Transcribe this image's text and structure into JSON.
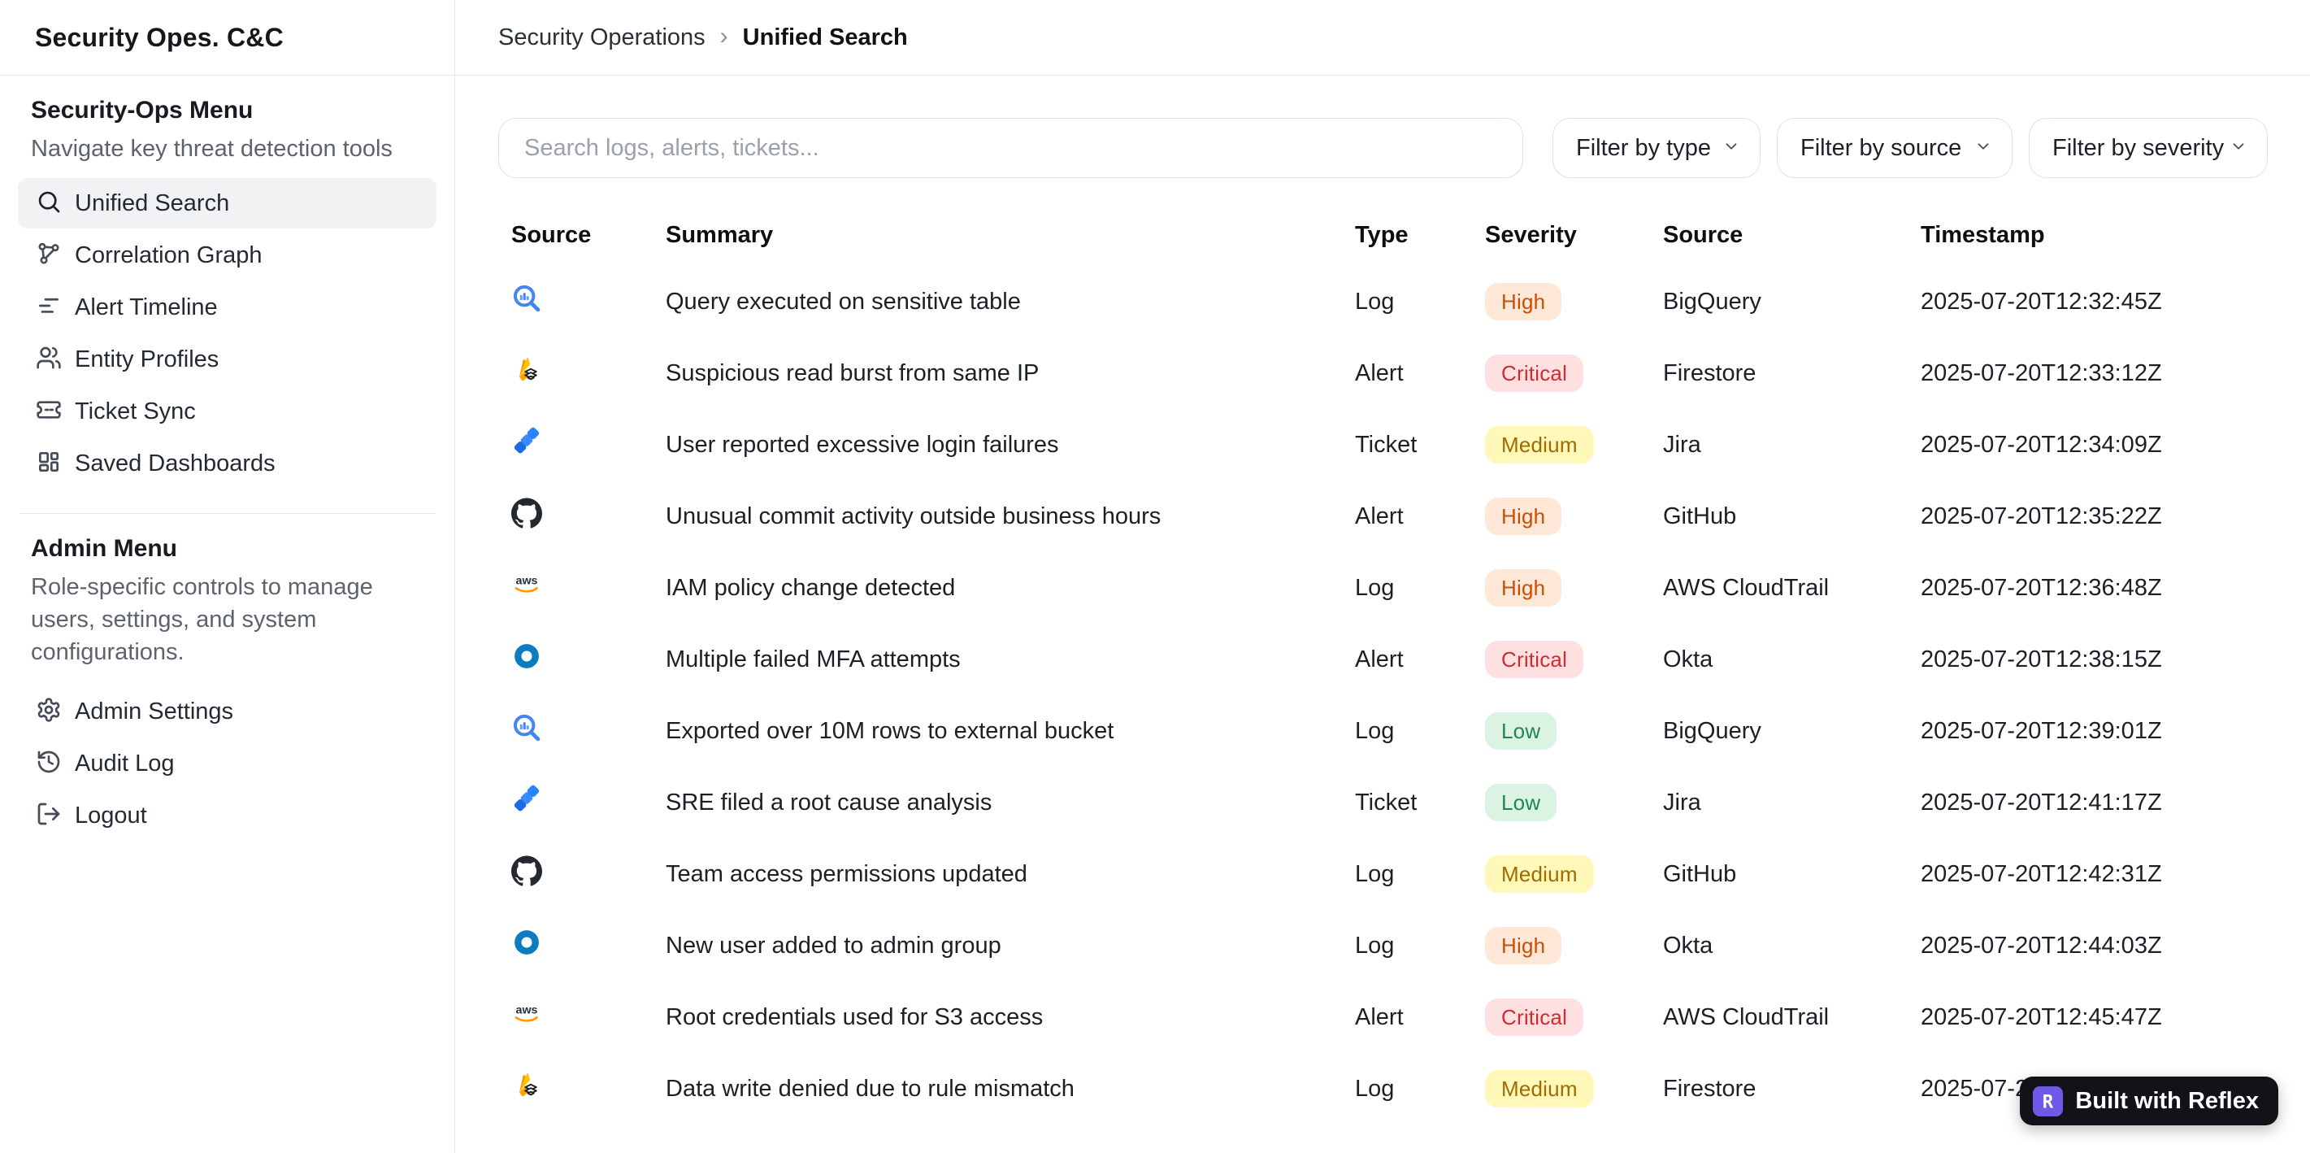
{
  "app": {
    "title": "Security Opes. C&C"
  },
  "breadcrumb": {
    "parent": "Security Operations",
    "separator": "›",
    "current": "Unified Search"
  },
  "sidebar": {
    "sections": [
      {
        "heading": "Security-Ops Menu",
        "description": "Navigate key threat detection tools",
        "items": [
          {
            "label": "Unified Search",
            "icon": "search-icon",
            "active": true
          },
          {
            "label": "Correlation Graph",
            "icon": "correlation-graph-icon",
            "active": false
          },
          {
            "label": "Alert Timeline",
            "icon": "timeline-icon",
            "active": false
          },
          {
            "label": "Entity Profiles",
            "icon": "users-icon",
            "active": false
          },
          {
            "label": "Ticket Sync",
            "icon": "ticket-icon",
            "active": false
          },
          {
            "label": "Saved Dashboards",
            "icon": "dashboard-icon",
            "active": false
          }
        ]
      },
      {
        "heading": "Admin Menu",
        "description": "Role-specific controls to manage users, settings, and system configurations.",
        "items": [
          {
            "label": "Admin Settings",
            "icon": "gear-icon",
            "active": false
          },
          {
            "label": "Audit Log",
            "icon": "history-icon",
            "active": false
          },
          {
            "label": "Logout",
            "icon": "logout-icon",
            "active": false
          }
        ]
      }
    ]
  },
  "toolbar": {
    "search_placeholder": "Search logs, alerts, tickets...",
    "filters": [
      {
        "label": "Filter by type"
      },
      {
        "label": "Filter by source"
      },
      {
        "label": "Filter by severity"
      }
    ]
  },
  "table": {
    "columns": [
      "Source",
      "Summary",
      "Type",
      "Severity",
      "Source",
      "Timestamp"
    ],
    "severity_colors": {
      "High": {
        "bg": "#ffe8d7",
        "text": "#cc4e00"
      },
      "Critical": {
        "bg": "#ffe0e1",
        "text": "#ce2c31"
      },
      "Medium": {
        "bg": "#fff8b8",
        "text": "#9e6c00"
      },
      "Low": {
        "bg": "#daf3e3",
        "text": "#218358"
      }
    },
    "rows": [
      {
        "icon": "bigquery-icon",
        "summary": "Query executed on sensitive table",
        "type": "Log",
        "severity": "High",
        "source": "BigQuery",
        "timestamp": "2025-07-20T12:32:45Z"
      },
      {
        "icon": "firestore-icon",
        "summary": "Suspicious read burst from same IP",
        "type": "Alert",
        "severity": "Critical",
        "source": "Firestore",
        "timestamp": "2025-07-20T12:33:12Z"
      },
      {
        "icon": "jira-icon",
        "summary": "User reported excessive login failures",
        "type": "Ticket",
        "severity": "Medium",
        "source": "Jira",
        "timestamp": "2025-07-20T12:34:09Z"
      },
      {
        "icon": "github-icon",
        "summary": "Unusual commit activity outside business hours",
        "type": "Alert",
        "severity": "High",
        "source": "GitHub",
        "timestamp": "2025-07-20T12:35:22Z"
      },
      {
        "icon": "aws-icon",
        "summary": "IAM policy change detected",
        "type": "Log",
        "severity": "High",
        "source": "AWS CloudTrail",
        "timestamp": "2025-07-20T12:36:48Z"
      },
      {
        "icon": "okta-icon",
        "summary": "Multiple failed MFA attempts",
        "type": "Alert",
        "severity": "Critical",
        "source": "Okta",
        "timestamp": "2025-07-20T12:38:15Z"
      },
      {
        "icon": "bigquery-icon",
        "summary": "Exported over 10M rows to external bucket",
        "type": "Log",
        "severity": "Low",
        "source": "BigQuery",
        "timestamp": "2025-07-20T12:39:01Z"
      },
      {
        "icon": "jira-icon",
        "summary": "SRE filed a root cause analysis",
        "type": "Ticket",
        "severity": "Low",
        "source": "Jira",
        "timestamp": "2025-07-20T12:41:17Z"
      },
      {
        "icon": "github-icon",
        "summary": "Team access permissions updated",
        "type": "Log",
        "severity": "Medium",
        "source": "GitHub",
        "timestamp": "2025-07-20T12:42:31Z"
      },
      {
        "icon": "okta-icon",
        "summary": "New user added to admin group",
        "type": "Log",
        "severity": "High",
        "source": "Okta",
        "timestamp": "2025-07-20T12:44:03Z"
      },
      {
        "icon": "aws-icon",
        "summary": "Root credentials used for S3 access",
        "type": "Alert",
        "severity": "Critical",
        "source": "AWS CloudTrail",
        "timestamp": "2025-07-20T12:45:47Z"
      },
      {
        "icon": "firestore-icon",
        "summary": "Data write denied due to rule mismatch",
        "type": "Log",
        "severity": "Medium",
        "source": "Firestore",
        "timestamp": "2025-07-20T1"
      }
    ]
  },
  "footer_badge": {
    "label": "Built with Reflex"
  }
}
